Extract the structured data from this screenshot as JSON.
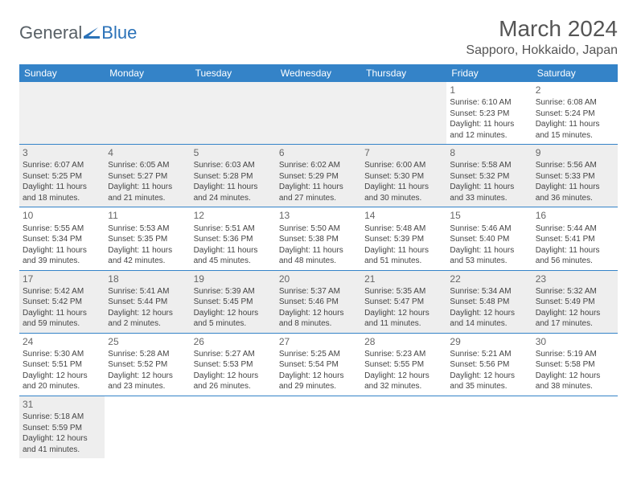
{
  "brand": {
    "part1": "General",
    "part2": "Blue"
  },
  "title": "March 2024",
  "location": "Sapporo, Hokkaido, Japan",
  "colors": {
    "header_bg": "#3483c8",
    "header_fg": "#ffffff",
    "row_border": "#3483c8",
    "shaded_bg": "#eeeeee",
    "text": "#444444",
    "title_color": "#555555",
    "brand_gray": "#586066",
    "brand_blue": "#2b72b8"
  },
  "weekdays": [
    "Sunday",
    "Monday",
    "Tuesday",
    "Wednesday",
    "Thursday",
    "Friday",
    "Saturday"
  ],
  "weeks": [
    [
      null,
      null,
      null,
      null,
      null,
      {
        "n": "1",
        "sr": "Sunrise: 6:10 AM",
        "ss": "Sunset: 5:23 PM",
        "d1": "Daylight: 11 hours",
        "d2": "and 12 minutes."
      },
      {
        "n": "2",
        "sr": "Sunrise: 6:08 AM",
        "ss": "Sunset: 5:24 PM",
        "d1": "Daylight: 11 hours",
        "d2": "and 15 minutes."
      }
    ],
    [
      {
        "n": "3",
        "sr": "Sunrise: 6:07 AM",
        "ss": "Sunset: 5:25 PM",
        "d1": "Daylight: 11 hours",
        "d2": "and 18 minutes."
      },
      {
        "n": "4",
        "sr": "Sunrise: 6:05 AM",
        "ss": "Sunset: 5:27 PM",
        "d1": "Daylight: 11 hours",
        "d2": "and 21 minutes."
      },
      {
        "n": "5",
        "sr": "Sunrise: 6:03 AM",
        "ss": "Sunset: 5:28 PM",
        "d1": "Daylight: 11 hours",
        "d2": "and 24 minutes."
      },
      {
        "n": "6",
        "sr": "Sunrise: 6:02 AM",
        "ss": "Sunset: 5:29 PM",
        "d1": "Daylight: 11 hours",
        "d2": "and 27 minutes."
      },
      {
        "n": "7",
        "sr": "Sunrise: 6:00 AM",
        "ss": "Sunset: 5:30 PM",
        "d1": "Daylight: 11 hours",
        "d2": "and 30 minutes."
      },
      {
        "n": "8",
        "sr": "Sunrise: 5:58 AM",
        "ss": "Sunset: 5:32 PM",
        "d1": "Daylight: 11 hours",
        "d2": "and 33 minutes."
      },
      {
        "n": "9",
        "sr": "Sunrise: 5:56 AM",
        "ss": "Sunset: 5:33 PM",
        "d1": "Daylight: 11 hours",
        "d2": "and 36 minutes."
      }
    ],
    [
      {
        "n": "10",
        "sr": "Sunrise: 5:55 AM",
        "ss": "Sunset: 5:34 PM",
        "d1": "Daylight: 11 hours",
        "d2": "and 39 minutes."
      },
      {
        "n": "11",
        "sr": "Sunrise: 5:53 AM",
        "ss": "Sunset: 5:35 PM",
        "d1": "Daylight: 11 hours",
        "d2": "and 42 minutes."
      },
      {
        "n": "12",
        "sr": "Sunrise: 5:51 AM",
        "ss": "Sunset: 5:36 PM",
        "d1": "Daylight: 11 hours",
        "d2": "and 45 minutes."
      },
      {
        "n": "13",
        "sr": "Sunrise: 5:50 AM",
        "ss": "Sunset: 5:38 PM",
        "d1": "Daylight: 11 hours",
        "d2": "and 48 minutes."
      },
      {
        "n": "14",
        "sr": "Sunrise: 5:48 AM",
        "ss": "Sunset: 5:39 PM",
        "d1": "Daylight: 11 hours",
        "d2": "and 51 minutes."
      },
      {
        "n": "15",
        "sr": "Sunrise: 5:46 AM",
        "ss": "Sunset: 5:40 PM",
        "d1": "Daylight: 11 hours",
        "d2": "and 53 minutes."
      },
      {
        "n": "16",
        "sr": "Sunrise: 5:44 AM",
        "ss": "Sunset: 5:41 PM",
        "d1": "Daylight: 11 hours",
        "d2": "and 56 minutes."
      }
    ],
    [
      {
        "n": "17",
        "sr": "Sunrise: 5:42 AM",
        "ss": "Sunset: 5:42 PM",
        "d1": "Daylight: 11 hours",
        "d2": "and 59 minutes."
      },
      {
        "n": "18",
        "sr": "Sunrise: 5:41 AM",
        "ss": "Sunset: 5:44 PM",
        "d1": "Daylight: 12 hours",
        "d2": "and 2 minutes."
      },
      {
        "n": "19",
        "sr": "Sunrise: 5:39 AM",
        "ss": "Sunset: 5:45 PM",
        "d1": "Daylight: 12 hours",
        "d2": "and 5 minutes."
      },
      {
        "n": "20",
        "sr": "Sunrise: 5:37 AM",
        "ss": "Sunset: 5:46 PM",
        "d1": "Daylight: 12 hours",
        "d2": "and 8 minutes."
      },
      {
        "n": "21",
        "sr": "Sunrise: 5:35 AM",
        "ss": "Sunset: 5:47 PM",
        "d1": "Daylight: 12 hours",
        "d2": "and 11 minutes."
      },
      {
        "n": "22",
        "sr": "Sunrise: 5:34 AM",
        "ss": "Sunset: 5:48 PM",
        "d1": "Daylight: 12 hours",
        "d2": "and 14 minutes."
      },
      {
        "n": "23",
        "sr": "Sunrise: 5:32 AM",
        "ss": "Sunset: 5:49 PM",
        "d1": "Daylight: 12 hours",
        "d2": "and 17 minutes."
      }
    ],
    [
      {
        "n": "24",
        "sr": "Sunrise: 5:30 AM",
        "ss": "Sunset: 5:51 PM",
        "d1": "Daylight: 12 hours",
        "d2": "and 20 minutes."
      },
      {
        "n": "25",
        "sr": "Sunrise: 5:28 AM",
        "ss": "Sunset: 5:52 PM",
        "d1": "Daylight: 12 hours",
        "d2": "and 23 minutes."
      },
      {
        "n": "26",
        "sr": "Sunrise: 5:27 AM",
        "ss": "Sunset: 5:53 PM",
        "d1": "Daylight: 12 hours",
        "d2": "and 26 minutes."
      },
      {
        "n": "27",
        "sr": "Sunrise: 5:25 AM",
        "ss": "Sunset: 5:54 PM",
        "d1": "Daylight: 12 hours",
        "d2": "and 29 minutes."
      },
      {
        "n": "28",
        "sr": "Sunrise: 5:23 AM",
        "ss": "Sunset: 5:55 PM",
        "d1": "Daylight: 12 hours",
        "d2": "and 32 minutes."
      },
      {
        "n": "29",
        "sr": "Sunrise: 5:21 AM",
        "ss": "Sunset: 5:56 PM",
        "d1": "Daylight: 12 hours",
        "d2": "and 35 minutes."
      },
      {
        "n": "30",
        "sr": "Sunrise: 5:19 AM",
        "ss": "Sunset: 5:58 PM",
        "d1": "Daylight: 12 hours",
        "d2": "and 38 minutes."
      }
    ],
    [
      {
        "n": "31",
        "sr": "Sunrise: 5:18 AM",
        "ss": "Sunset: 5:59 PM",
        "d1": "Daylight: 12 hours",
        "d2": "and 41 minutes."
      },
      null,
      null,
      null,
      null,
      null,
      null
    ]
  ]
}
